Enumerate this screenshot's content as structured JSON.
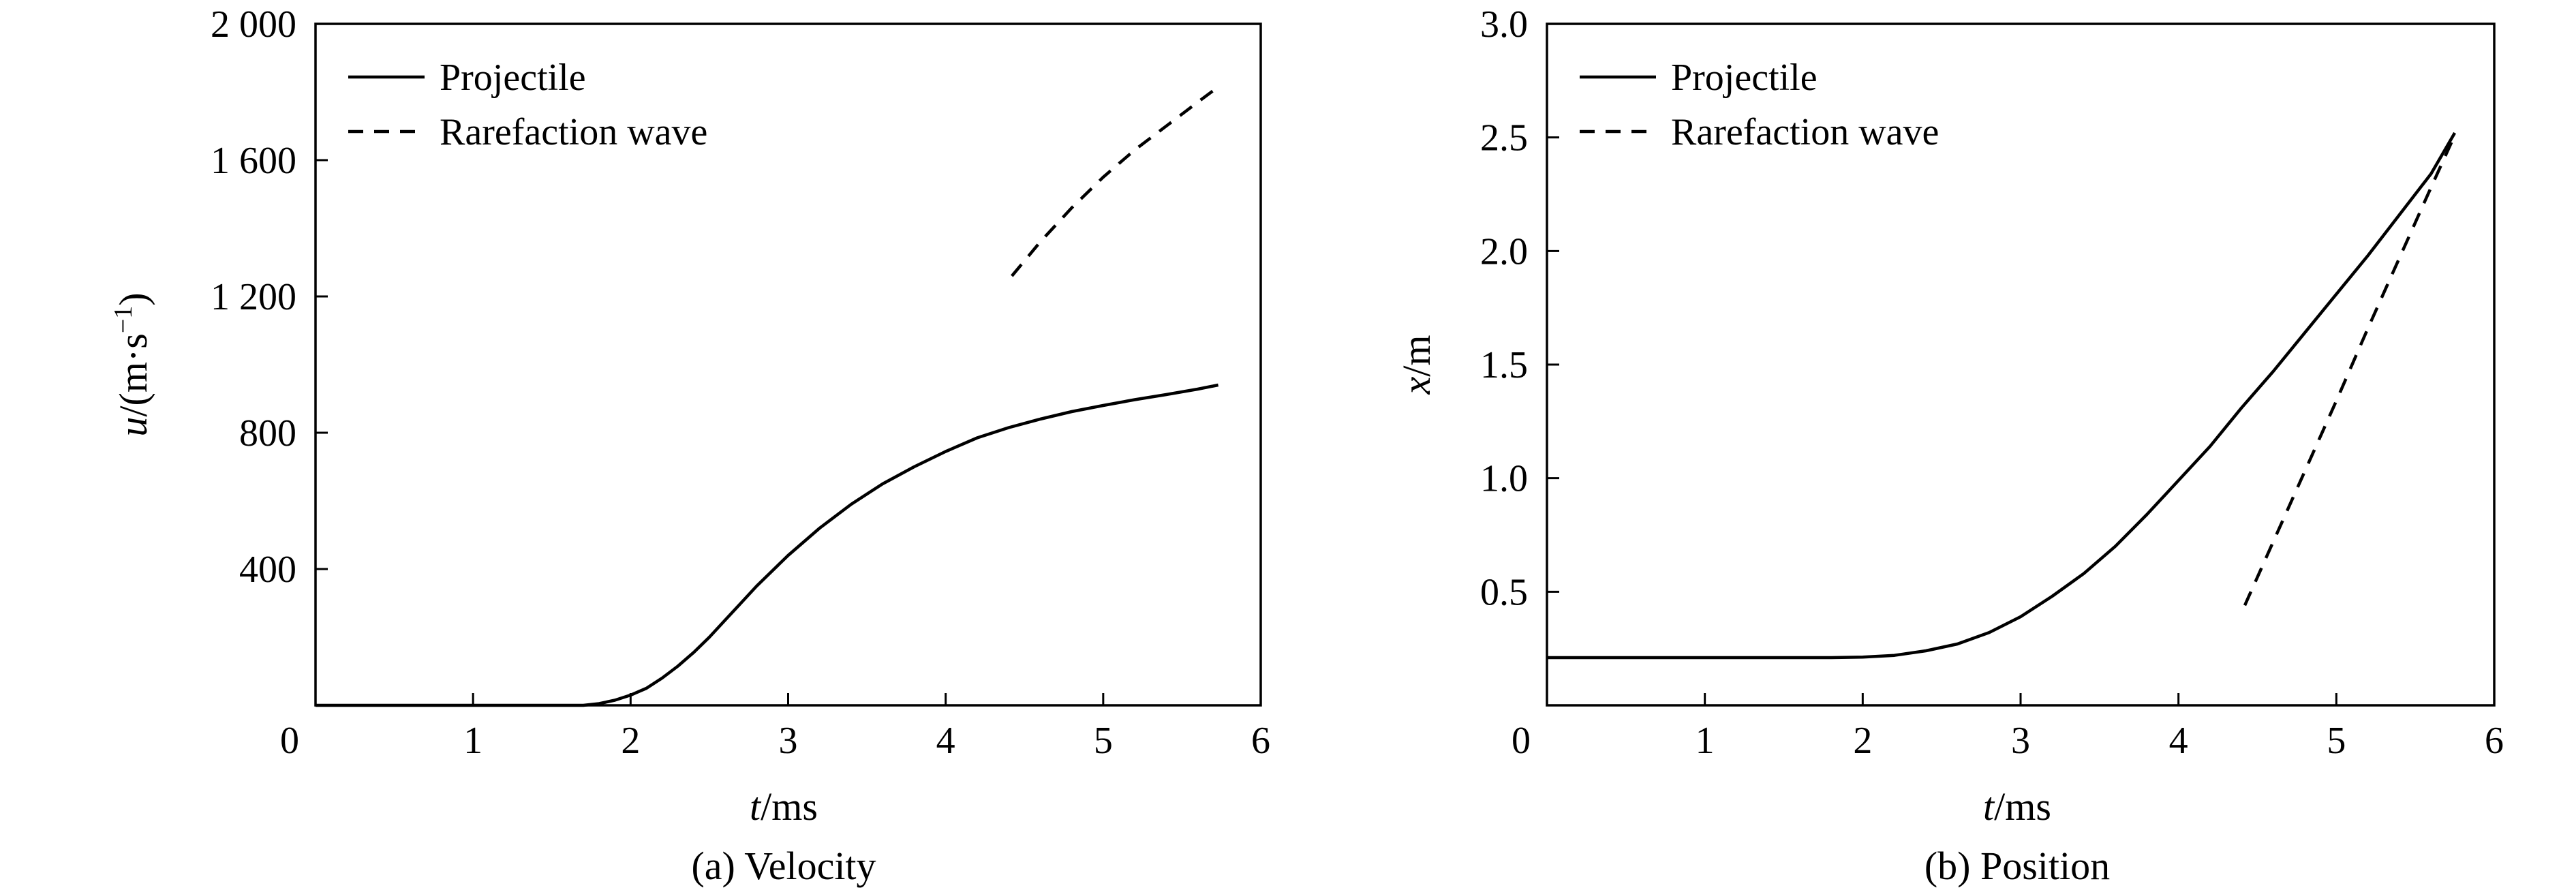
{
  "chart_data": [
    {
      "type": "line",
      "caption": "(a) Velocity",
      "xlabel_var": "t",
      "xlabel_unit": "/ms",
      "ylabel_var": "u",
      "ylabel_unit": "/(m·s",
      "ylabel_exp": "−1",
      "ylabel_close": ")",
      "xlim": [
        0,
        6
      ],
      "ylim": [
        0,
        2000
      ],
      "xticks": [
        0,
        1,
        2,
        3,
        4,
        5,
        6
      ],
      "xtick_labels": [
        "0",
        "1",
        "2",
        "3",
        "4",
        "5",
        "6"
      ],
      "yticks": [
        400,
        800,
        1200,
        1600,
        2000
      ],
      "ytick_labels": [
        "400",
        "800",
        "1 200",
        "1 600",
        "2 000"
      ],
      "grid": false,
      "legend_position": "top-left",
      "series": [
        {
          "name": "Projectile",
          "style": "solid",
          "x": [
            0,
            1.5,
            1.7,
            1.8,
            1.9,
            2.0,
            2.1,
            2.2,
            2.3,
            2.4,
            2.5,
            2.6,
            2.7,
            2.8,
            2.9,
            3.0,
            3.2,
            3.4,
            3.6,
            3.8,
            4.0,
            4.2,
            4.4,
            4.6,
            4.8,
            5.0,
            5.2,
            5.4,
            5.6,
            5.73
          ],
          "y": [
            0,
            0,
            0,
            5,
            15,
            30,
            50,
            80,
            115,
            155,
            200,
            250,
            300,
            350,
            395,
            440,
            520,
            590,
            650,
            700,
            745,
            785,
            815,
            840,
            862,
            880,
            897,
            912,
            928,
            940
          ]
        },
        {
          "name": "Rarefaction wave",
          "style": "dashed",
          "x": [
            4.42,
            4.6,
            4.8,
            5.0,
            5.2,
            5.4,
            5.6,
            5.73
          ],
          "y": [
            1260,
            1360,
            1460,
            1550,
            1630,
            1700,
            1770,
            1815
          ]
        }
      ]
    },
    {
      "type": "line",
      "caption": "(b) Position",
      "xlabel_var": "t",
      "xlabel_unit": "/ms",
      "ylabel_var": "x",
      "ylabel_unit": "/m",
      "xlim": [
        0,
        6
      ],
      "ylim": [
        0,
        3.0
      ],
      "xticks": [
        0,
        1,
        2,
        3,
        4,
        5,
        6
      ],
      "xtick_labels": [
        "0",
        "1",
        "2",
        "3",
        "4",
        "5",
        "6"
      ],
      "yticks": [
        0.5,
        1.0,
        1.5,
        2.0,
        2.5,
        3.0
      ],
      "ytick_labels": [
        "0.5",
        "1.0",
        "1.5",
        "2.0",
        "2.5",
        "3.0"
      ],
      "grid": false,
      "legend_position": "top-left",
      "series": [
        {
          "name": "Projectile",
          "style": "solid",
          "x": [
            0,
            1.8,
            2.0,
            2.2,
            2.4,
            2.6,
            2.8,
            3.0,
            3.2,
            3.4,
            3.6,
            3.8,
            4.0,
            4.2,
            4.4,
            4.6,
            4.8,
            5.0,
            5.2,
            5.4,
            5.6,
            5.75
          ],
          "y": [
            0.21,
            0.21,
            0.212,
            0.22,
            0.24,
            0.27,
            0.32,
            0.39,
            0.48,
            0.58,
            0.7,
            0.84,
            0.99,
            1.14,
            1.31,
            1.47,
            1.64,
            1.81,
            1.98,
            2.16,
            2.34,
            2.52
          ]
        },
        {
          "name": "Rarefaction wave",
          "style": "dashed",
          "x": [
            4.42,
            4.6,
            4.8,
            5.0,
            5.2,
            5.4,
            5.6,
            5.75
          ],
          "y": [
            0.44,
            0.72,
            1.03,
            1.34,
            1.66,
            1.97,
            2.28,
            2.51
          ]
        }
      ]
    }
  ]
}
